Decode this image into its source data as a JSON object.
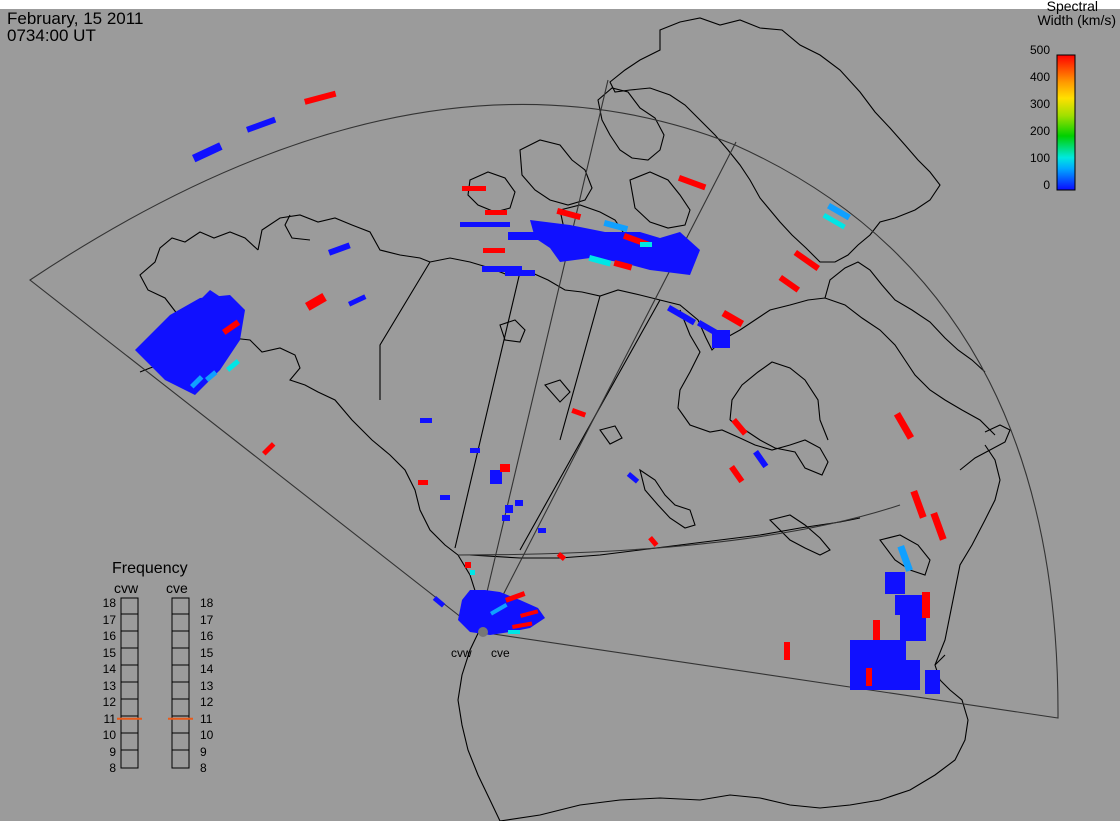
{
  "header": {
    "date": "February, 15 2011",
    "time": "0734:00 UT"
  },
  "colorbar": {
    "title_line1": "Spectral",
    "title_line2": "Width (km/s)",
    "ticks": [
      "500",
      "400",
      "300",
      "200",
      "100",
      "0"
    ],
    "colors": [
      "#0a0aff",
      "#00aaff",
      "#00e8e0",
      "#00d000",
      "#a0e000",
      "#ffe000",
      "#ff9900",
      "#ff0000"
    ]
  },
  "frequency_panel": {
    "title": "Frequency",
    "radars": [
      "cvw",
      "cve"
    ],
    "ticks": [
      "18",
      "17",
      "16",
      "15",
      "14",
      "13",
      "12",
      "11",
      "10",
      "9",
      "8"
    ],
    "current_mhz": {
      "cvw": 10.9,
      "cve": 10.9
    },
    "marker_color": "#e85a1a"
  },
  "radar_labels": {
    "west": "cvw",
    "east": "cve"
  },
  "echo_colors": {
    "low": "#1010ff",
    "mid": "#10a0ff",
    "cyan": "#00e6e6",
    "high": "#ff0000"
  }
}
